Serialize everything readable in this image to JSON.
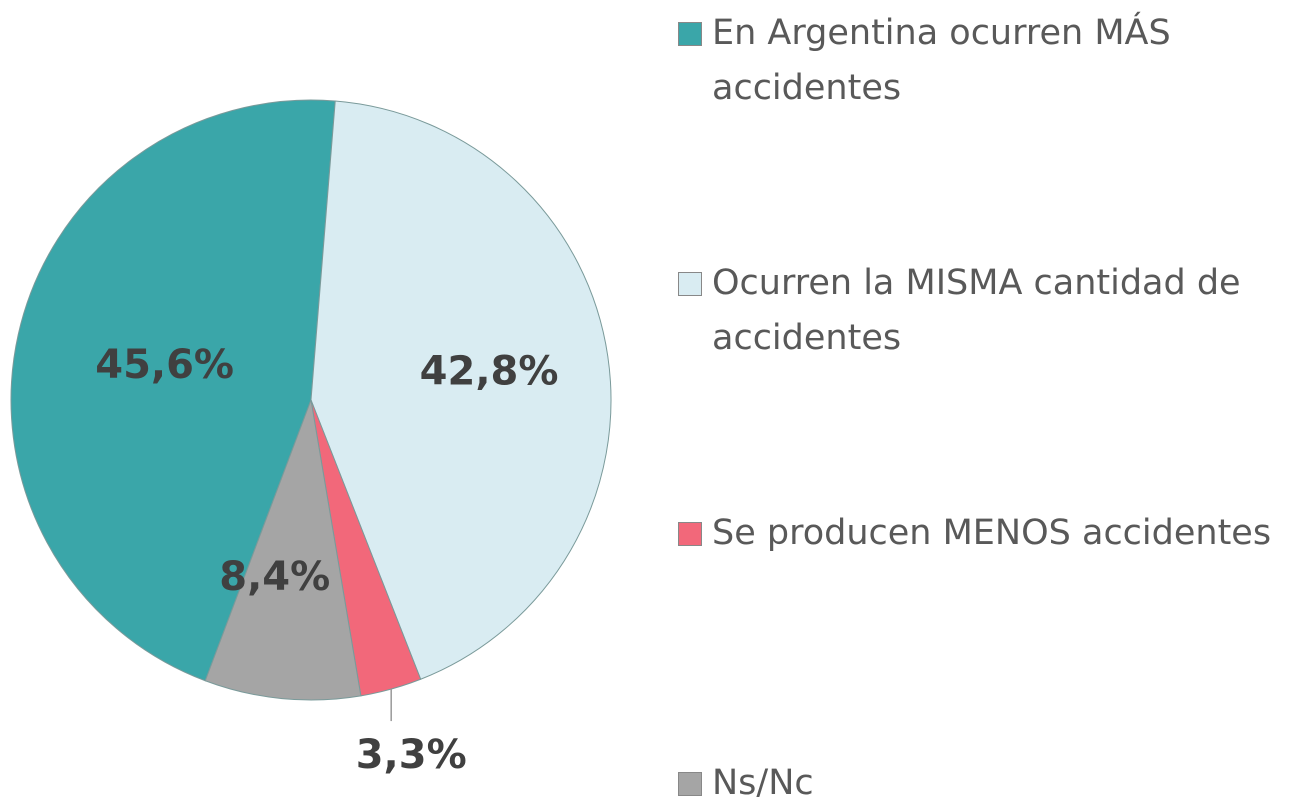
{
  "chart_data": {
    "type": "pie",
    "categories": [
      "En Argentina ocurren MÁS accidentes",
      "Ocurren la MISMA cantidad de accidentes",
      "Se producen MENOS accidentes",
      "Ns/Nc"
    ],
    "values": [
      45.6,
      42.8,
      3.3,
      8.4
    ],
    "value_labels": [
      "45,6%",
      "42,8%",
      "3,3%",
      "8,4%"
    ],
    "colors": [
      "#3aa6a9",
      "#d9ecf2",
      "#f2687a",
      "#a5a5a5"
    ]
  }
}
